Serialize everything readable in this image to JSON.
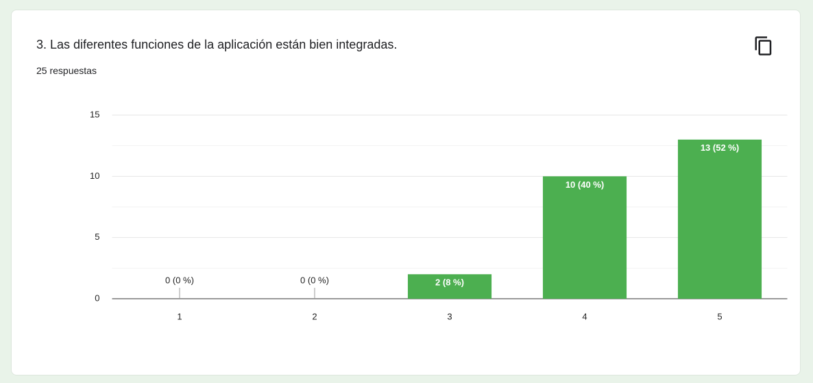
{
  "chart_data": {
    "type": "bar",
    "title": "3. Las diferentes funciones de la aplicación están bien integradas.",
    "subtitle": "25 respuestas",
    "categories": [
      "1",
      "2",
      "3",
      "4",
      "5"
    ],
    "values": [
      0,
      0,
      2,
      10,
      13
    ],
    "value_labels": [
      "0 (0 %)",
      "0 (0 %)",
      "2 (8 %)",
      "10 (40 %)",
      "13 (52 %)"
    ],
    "color": "#4caf50",
    "ylim": [
      0,
      15
    ],
    "yticks": [
      0,
      5,
      10,
      15
    ],
    "minor_yticks": [
      2.5,
      7.5,
      12.5
    ],
    "grid": true
  }
}
